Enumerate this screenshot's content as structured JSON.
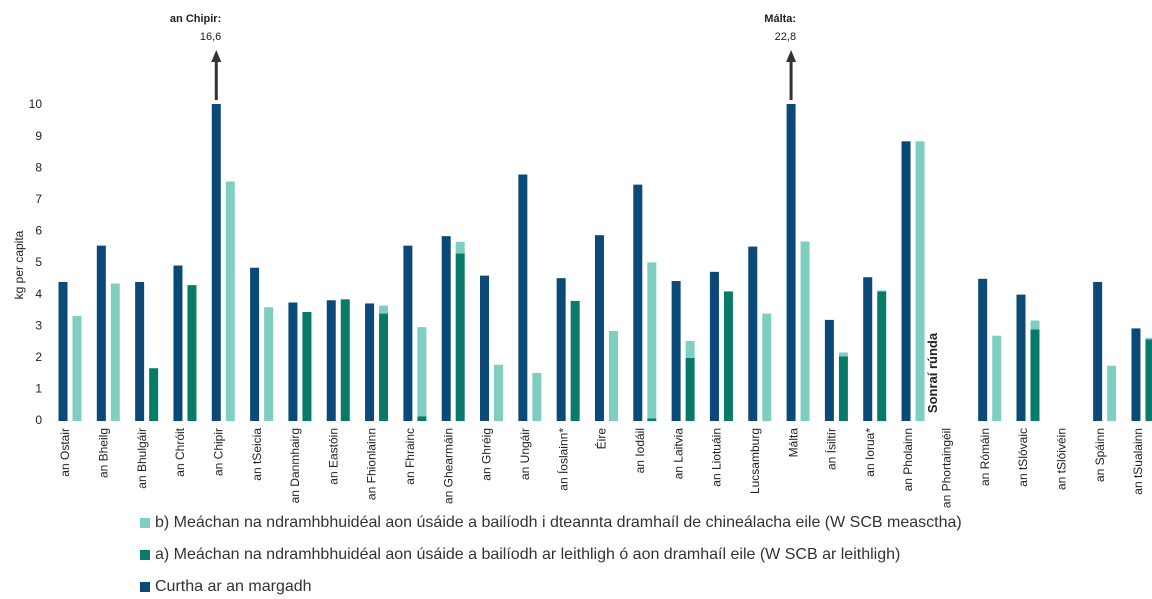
{
  "chart_data": {
    "type": "bar",
    "y_label": "kg per capita",
    "categories": [
      "an Ostair",
      "an Bheilg",
      "an Bhulgáir",
      "an Chróit",
      "an Chipir",
      "an tSeicia",
      "an Danmhairg",
      "an Eastóin",
      "an Fhionlainn",
      "an Fhrainc",
      "an Ghearmáin",
      "an Ghréig",
      "an Ungáir",
      "an Íoslainn*",
      "Éire",
      "an Iodáil",
      "an Laitvia",
      "an Liotuáin",
      "Lucsamburg",
      "Málta",
      "an Ísiltír",
      "an Iorua*",
      "an Pholainn",
      "an Phortaingéil",
      "an Rómáin",
      "an tSlóvaic",
      "an tSlóivéin",
      "an Spáinn",
      "an tSualainn"
    ],
    "series": [
      {
        "name": "b) Meáchan na ndramhbhuidéal aon úsáide a bailíodh i dteannta dramhaíl de chineálacha eile (W SCB measctha)",
        "color": "#7fcfc1",
        "stack": "collected",
        "values": [
          3.32,
          4.35,
          null,
          null,
          7.58,
          3.6,
          null,
          null,
          0.25,
          2.82,
          0.37,
          1.78,
          1.52,
          null,
          2.85,
          4.94,
          0.53,
          null,
          3.4,
          5.68,
          0.12,
          0.03,
          8.85,
          null,
          2.7,
          0.28,
          null,
          1.75,
          0.05
        ]
      },
      {
        "name": "a) Meáchan na ndramhbhuidéal aon úsáide a bailíodh ar leithligh ó aon dramhaíl eile (W SCB ar leithligh)",
        "color": "#087a68",
        "stack": "collected",
        "values": [
          null,
          null,
          1.67,
          4.3,
          null,
          null,
          3.45,
          3.85,
          3.4,
          0.15,
          5.3,
          null,
          null,
          3.8,
          null,
          0.08,
          2.0,
          4.1,
          null,
          null,
          2.05,
          4.1,
          null,
          null,
          null,
          2.9,
          null,
          null,
          2.58
        ]
      },
      {
        "name": "Curtha ar an margadh",
        "color": "#0b4a78",
        "stack": "market",
        "values": [
          4.4,
          5.55,
          4.4,
          4.92,
          16.6,
          4.85,
          3.75,
          3.82,
          3.72,
          5.55,
          5.85,
          4.6,
          7.8,
          4.52,
          5.88,
          7.48,
          4.43,
          4.72,
          5.52,
          22.8,
          3.2,
          4.55,
          8.85,
          null,
          4.5,
          4.0,
          null,
          4.4,
          2.93
        ],
        "value_labels": [
          null,
          null,
          null,
          null,
          "16,6",
          null,
          null,
          null,
          null,
          null,
          null,
          null,
          null,
          null,
          null,
          null,
          null,
          null,
          null,
          "22,8",
          null,
          null,
          null,
          null,
          null,
          null,
          null,
          null,
          null
        ]
      }
    ],
    "annotations": [
      "an Chipir:",
      "Málta:"
    ],
    "notes": [
      {
        "category": "an Phortaingéil",
        "text": "Sonraí rúnda"
      }
    ],
    "ylim": [
      0,
      10
    ],
    "yticks": [
      0,
      1,
      2,
      3,
      4,
      5,
      6,
      7,
      8,
      9,
      10
    ],
    "grid": false
  }
}
